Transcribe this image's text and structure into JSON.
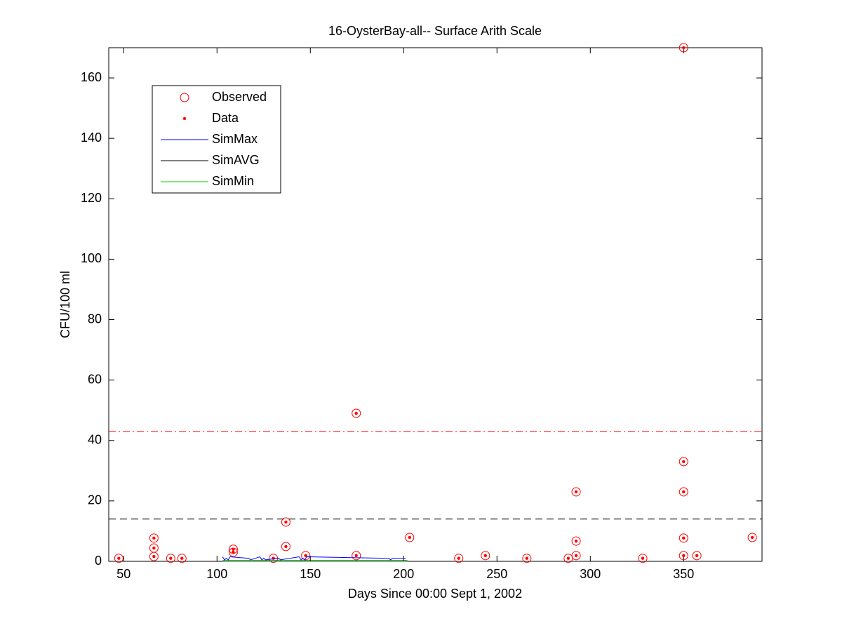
{
  "chart_data": {
    "type": "scatter",
    "title": "16-OysterBay-all-- Surface Arith Scale",
    "x_label": "Days Since 00:00 Sept 1, 2002",
    "y_label": "CFU/100 ml",
    "xlim": [
      42,
      392
    ],
    "ylim": [
      0,
      170
    ],
    "xticks": [
      50,
      100,
      150,
      200,
      250,
      300,
      350
    ],
    "yticks": [
      0,
      20,
      40,
      60,
      80,
      100,
      120,
      140,
      160
    ],
    "legend": "upper left",
    "hlines": [
      {
        "value": 43,
        "color": "#ff0000",
        "style": "dash-dot"
      },
      {
        "value": 14,
        "color": "#000000",
        "style": "dashed"
      }
    ],
    "series": [
      {
        "name": "Observed",
        "color": "#ff0000",
        "marker": "circle",
        "x": [
          47.4,
          66.2,
          66.2,
          66.2,
          75.2,
          81.2,
          108.7,
          108.7,
          130.2,
          136.9,
          136.9,
          147.5,
          174.6,
          174.6,
          203.2,
          229.5,
          243.8,
          266,
          288.2,
          292.4,
          292.4,
          292.4,
          328.1,
          350,
          350,
          350,
          350,
          350,
          357.1,
          386.8
        ],
        "values": [
          1,
          7.7,
          4.4,
          1.6,
          1,
          1,
          4,
          3,
          1,
          13,
          4.9,
          1.9,
          49,
          1.9,
          7.9,
          1,
          1.9,
          1,
          1,
          23,
          6.7,
          1.9,
          1,
          170,
          33,
          23,
          7.7,
          1.9,
          1.9,
          7.9
        ]
      },
      {
        "name": "Data",
        "color": "#ff0000",
        "marker": "dot",
        "x": [
          47.4,
          66.2,
          66.2,
          66.2,
          75.2,
          81.2,
          108.7,
          108.7,
          130.2,
          136.9,
          136.9,
          147.5,
          174.6,
          174.6,
          203.2,
          229.5,
          243.8,
          266,
          288.2,
          292.4,
          292.4,
          292.4,
          328.1,
          350,
          350,
          350,
          350,
          350,
          357.1,
          386.8
        ],
        "values": [
          1,
          7.7,
          4.4,
          1.6,
          1,
          1,
          4,
          3,
          1,
          13,
          4.9,
          1.9,
          49,
          1.9,
          7.9,
          1,
          1.9,
          1,
          1,
          23,
          6.7,
          1.9,
          1,
          170,
          33,
          23,
          7.7,
          1.9,
          1.9,
          7.9
        ]
      },
      {
        "name": "SimMax",
        "color": "#0000ff",
        "marker": "line",
        "x": [
          103,
          104,
          105,
          106,
          107,
          117,
          118,
          123,
          124,
          125,
          126,
          133,
          134,
          144,
          145,
          146,
          147,
          148,
          192,
          193,
          194,
          201
        ],
        "values": [
          1.5,
          0.5,
          1,
          0.5,
          1.5,
          1,
          0.5,
          1.5,
          0.5,
          1,
          0.5,
          1,
          0.5,
          1.5,
          0.5,
          1,
          0.5,
          1.5,
          1,
          0.5,
          1,
          1
        ]
      },
      {
        "name": "SimAVG",
        "color": "#000000",
        "marker": "line",
        "x": [
          103,
          150,
          202
        ],
        "values": [
          0.2,
          0.2,
          0.2
        ]
      },
      {
        "name": "SimMin",
        "color": "#00cc00",
        "marker": "line",
        "x": [
          103,
          202
        ],
        "values": [
          0,
          0
        ]
      }
    ]
  }
}
